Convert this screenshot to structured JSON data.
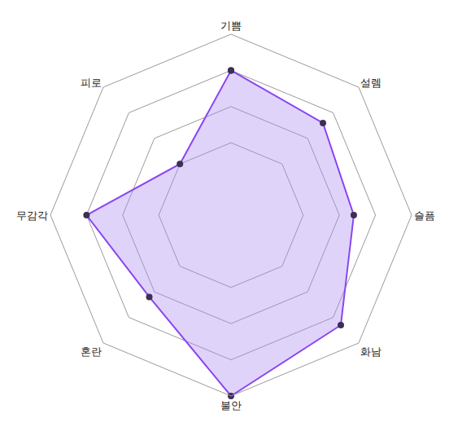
{
  "chart_data": {
    "type": "radar",
    "categories": [
      "기쁨",
      "설렘",
      "슬픔",
      "화남",
      "불안",
      "혼란",
      "무감각",
      "피로"
    ],
    "values": [
      4,
      3.6,
      3.4,
      4.3,
      5,
      3.2,
      4,
      2.0
    ],
    "color": "#8b45f0",
    "ylim": [
      0,
      5
    ],
    "yticks": [
      2,
      3,
      4,
      5
    ],
    "grid": true,
    "tick_labels": false,
    "marker": "circle"
  }
}
